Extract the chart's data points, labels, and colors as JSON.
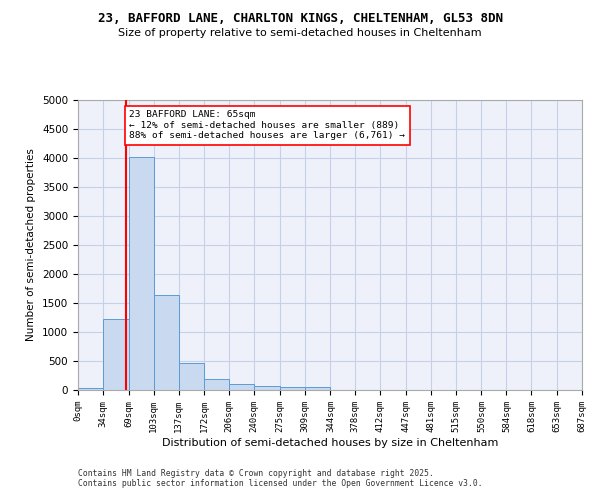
{
  "title_line1": "23, BAFFORD LANE, CHARLTON KINGS, CHELTENHAM, GL53 8DN",
  "title_line2": "Size of property relative to semi-detached houses in Cheltenham",
  "xlabel": "Distribution of semi-detached houses by size in Cheltenham",
  "ylabel": "Number of semi-detached properties",
  "bar_values": [
    40,
    1230,
    4020,
    1640,
    470,
    190,
    110,
    65,
    45,
    55,
    0,
    0,
    0,
    0,
    0,
    0,
    0,
    0,
    0,
    0
  ],
  "bin_edges": [
    0,
    34,
    69,
    103,
    137,
    172,
    206,
    240,
    275,
    309,
    344,
    378,
    412,
    447,
    481,
    515,
    550,
    584,
    618,
    653,
    687
  ],
  "tick_labels": [
    "0sqm",
    "34sqm",
    "69sqm",
    "103sqm",
    "137sqm",
    "172sqm",
    "206sqm",
    "240sqm",
    "275sqm",
    "309sqm",
    "344sqm",
    "378sqm",
    "412sqm",
    "447sqm",
    "481sqm",
    "515sqm",
    "550sqm",
    "584sqm",
    "618sqm",
    "653sqm",
    "687sqm"
  ],
  "bar_color": "#c9d9f0",
  "bar_edge_color": "#5b9bd5",
  "grid_color": "#c8d0e8",
  "background_color": "#eef1fa",
  "red_line_x": 65,
  "annotation_text": "23 BAFFORD LANE: 65sqm\n← 12% of semi-detached houses are smaller (889)\n88% of semi-detached houses are larger (6,761) →",
  "footer_line1": "Contains HM Land Registry data © Crown copyright and database right 2025.",
  "footer_line2": "Contains public sector information licensed under the Open Government Licence v3.0.",
  "ylim": [
    0,
    5000
  ],
  "yticks": [
    0,
    500,
    1000,
    1500,
    2000,
    2500,
    3000,
    3500,
    4000,
    4500,
    5000
  ]
}
